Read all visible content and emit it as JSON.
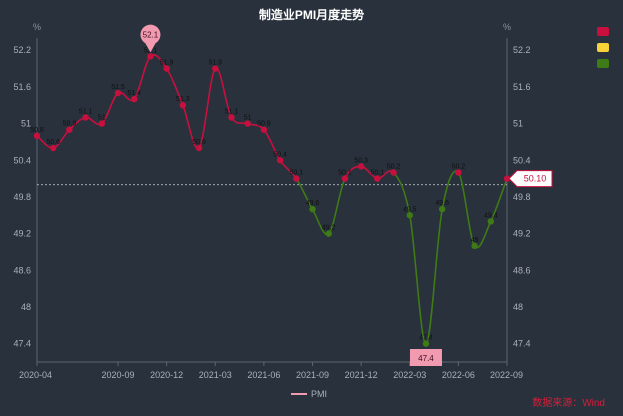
{
  "chart_data": {
    "type": "line",
    "title": "制造业PMI月度走势",
    "yunit": "%",
    "ylim": [
      47.1,
      52.4
    ],
    "yticks": [
      47.4,
      48,
      48.6,
      49.2,
      49.8,
      50.4,
      51,
      51.6,
      52.2
    ],
    "x": [
      "2020-04",
      "2020-05",
      "2020-06",
      "2020-07",
      "2020-08",
      "2020-09",
      "2020-10",
      "2020-11",
      "2020-12",
      "2021-01",
      "2021-02",
      "2021-03",
      "2021-04",
      "2021-05",
      "2021-06",
      "2021-07",
      "2021-08",
      "2021-09",
      "2021-10",
      "2021-11",
      "2021-12",
      "2022-01",
      "2022-02",
      "2022-03",
      "2022-04",
      "2022-05",
      "2022-06",
      "2022-07",
      "2022-08",
      "2022-09"
    ],
    "xticks": [
      "2020-04",
      "2020-09",
      "2020-12",
      "2021-03",
      "2021-06",
      "2021-09",
      "2021-12",
      "2022-03",
      "2022-06",
      "2022-09"
    ],
    "series": [
      {
        "name": "PMI",
        "values": [
          50.8,
          50.6,
          50.9,
          51.1,
          51.0,
          51.5,
          51.4,
          52.1,
          51.9,
          51.3,
          50.6,
          51.9,
          51.1,
          51.0,
          50.9,
          50.4,
          50.1,
          49.6,
          49.2,
          50.1,
          50.3,
          50.1,
          50.2,
          49.5,
          47.4,
          49.6,
          50.2,
          49.0,
          49.4,
          50.1
        ]
      }
    ],
    "reference_line": 50.0,
    "current_label": "50.10",
    "max_label": "52.1",
    "min_label": "47.4",
    "colors": {
      "above": "#c8103f",
      "below": "#3e7a16",
      "pin_max": "#f29ab0",
      "pin_min": "#f29ab0",
      "legend_line": "#f29ab0"
    },
    "legend_right": [
      {
        "color": "#c8103f"
      },
      {
        "color": "#f7d23b"
      },
      {
        "color": "#3e7a16"
      }
    ],
    "legend_bottom": "PMI",
    "source": "数据来源：Wind"
  }
}
